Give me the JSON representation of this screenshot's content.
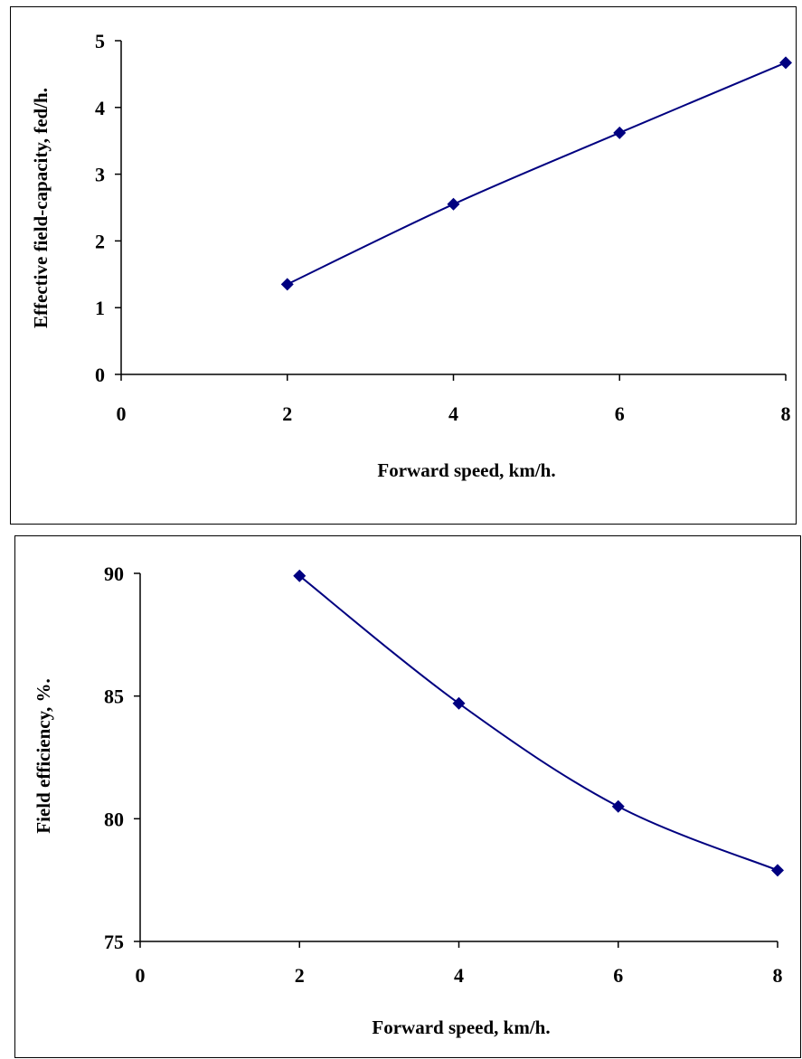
{
  "chart_data": [
    {
      "type": "line",
      "title": "",
      "xlabel": "Forward speed, km/h.",
      "ylabel": "Effective field-capacity, fed/h.",
      "x": [
        2,
        4,
        6,
        8
      ],
      "series": [
        {
          "values": [
            1.35,
            2.55,
            3.62,
            4.67
          ]
        }
      ],
      "xlim": [
        0,
        8
      ],
      "ylim": [
        0,
        5
      ],
      "xticks": [
        "0",
        "2",
        "4",
        "6",
        "8"
      ],
      "yticks": [
        "0",
        "1",
        "2",
        "3",
        "4",
        "5"
      ],
      "grid": false,
      "legend": "none",
      "colors": {
        "series": "#000080",
        "axis": "#000000"
      }
    },
    {
      "type": "line",
      "title": "",
      "xlabel": "Forward speed, km/h.",
      "ylabel": "Field efficiency, %.",
      "x": [
        2,
        4,
        6,
        8
      ],
      "series": [
        {
          "values": [
            89.9,
            84.7,
            80.5,
            77.9
          ]
        }
      ],
      "xlim": [
        0,
        8
      ],
      "ylim": [
        75,
        90
      ],
      "xticks": [
        "0",
        "2",
        "4",
        "6",
        "8"
      ],
      "yticks": [
        "75",
        "80",
        "85",
        "90"
      ],
      "grid": false,
      "legend": "none",
      "colors": {
        "series": "#000080",
        "axis": "#000000"
      }
    }
  ]
}
